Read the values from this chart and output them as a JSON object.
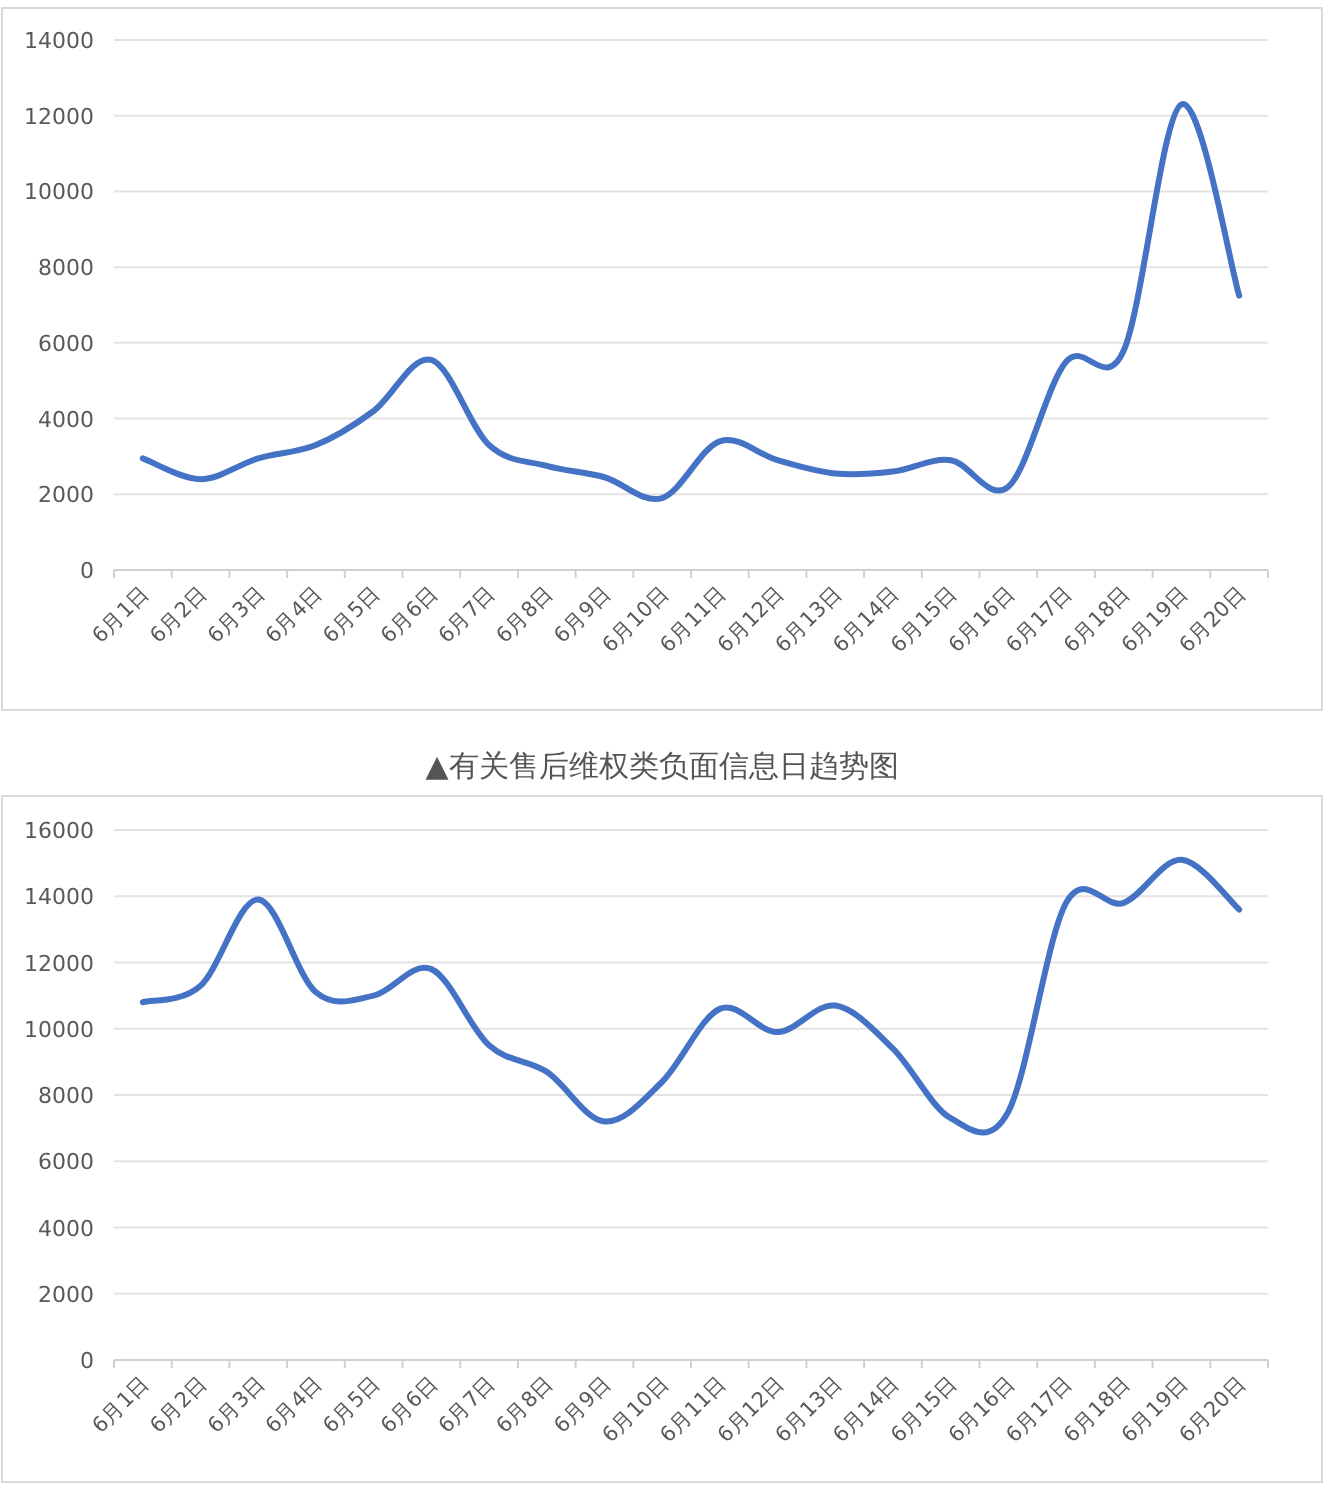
{
  "chart_data": [
    {
      "type": "line",
      "categories": [
        "6月1日",
        "6月2日",
        "6月3日",
        "6月4日",
        "6月5日",
        "6月6日",
        "6月7日",
        "6月8日",
        "6月9日",
        "6月10日",
        "6月11日",
        "6月12日",
        "6月13日",
        "6月14日",
        "6月15日",
        "6月16日",
        "6月17日",
        "6月18日",
        "6月19日",
        "6月20日"
      ],
      "values": [
        2950,
        2400,
        2950,
        3300,
        4200,
        5550,
        3300,
        2750,
        2450,
        1900,
        3400,
        2900,
        2550,
        2600,
        2900,
        2200,
        5500,
        5800,
        12300,
        7250
      ],
      "color": "#4472c4",
      "ylim": [
        0,
        14000
      ],
      "yticks": [
        0,
        2000,
        4000,
        6000,
        8000,
        10000,
        12000,
        14000
      ],
      "grid": "y",
      "annotations": [
        "▲有关售后维权类负面信息日趋势图"
      ]
    },
    {
      "type": "line",
      "categories": [
        "6月1日",
        "6月2日",
        "6月3日",
        "6月4日",
        "6月5日",
        "6月6日",
        "6月7日",
        "6月8日",
        "6月9日",
        "6月10日",
        "6月11日",
        "6月12日",
        "6月13日",
        "6月14日",
        "6月15日",
        "6月16日",
        "6月17日",
        "6月18日",
        "6月19日",
        "6月20日"
      ],
      "values": [
        10800,
        11300,
        13900,
        11100,
        11000,
        11800,
        9500,
        8700,
        7200,
        8400,
        10600,
        9900,
        10700,
        9400,
        7300,
        7500,
        13800,
        13800,
        15100,
        13600
      ],
      "color": "#4472c4",
      "ylim": [
        0,
        16000
      ],
      "yticks": [
        0,
        2000,
        4000,
        6000,
        8000,
        10000,
        12000,
        14000,
        16000
      ],
      "grid": "y"
    }
  ]
}
